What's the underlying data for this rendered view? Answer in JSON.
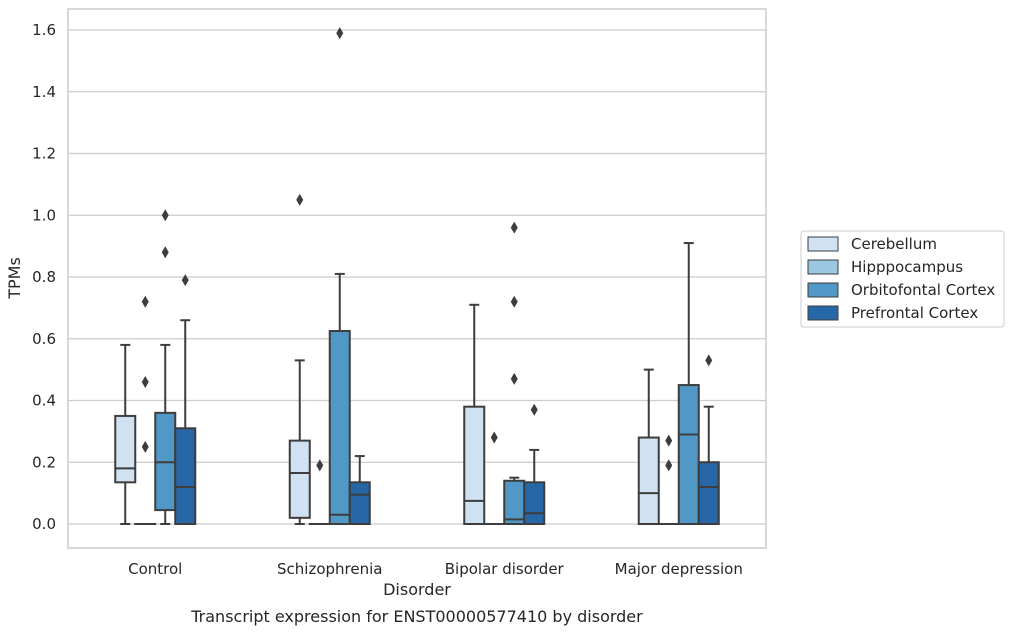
{
  "chart_data": {
    "type": "box",
    "caption": "Transcript expression for ENST00000577410 by disorder",
    "xlabel": "Disorder",
    "ylabel": "TPMs",
    "ylim": [
      -0.08,
      1.67
    ],
    "yticks": [
      "0.0",
      "0.2",
      "0.4",
      "0.6",
      "0.8",
      "1.0",
      "1.2",
      "1.4",
      "1.6"
    ],
    "grid": true,
    "legend_position": "right",
    "categories": [
      "Control",
      "Schizophrenia",
      "Bipolar disorder",
      "Major depression"
    ],
    "series": [
      {
        "name": "Cerebellum",
        "color": "#d0e1f2",
        "boxes": [
          {
            "low": 0.0,
            "q1": 0.135,
            "median": 0.18,
            "q3": 0.35,
            "high": 0.58,
            "outliers": []
          },
          {
            "low": 0.0,
            "q1": 0.02,
            "median": 0.165,
            "q3": 0.27,
            "high": 0.53,
            "outliers": [
              1.05
            ]
          },
          {
            "low": 0.0,
            "q1": 0.0,
            "median": 0.075,
            "q3": 0.38,
            "high": 0.71,
            "outliers": []
          },
          {
            "low": 0.0,
            "q1": 0.0,
            "median": 0.1,
            "q3": 0.28,
            "high": 0.5,
            "outliers": []
          }
        ]
      },
      {
        "name": "Hipppocampus",
        "color": "#9ac8e0",
        "boxes": [
          {
            "low": 0.0,
            "q1": 0.0,
            "median": 0.0,
            "q3": 0.0,
            "high": 0.0,
            "outliers": [
              0.25,
              0.46,
              0.72
            ]
          },
          {
            "low": 0.0,
            "q1": 0.0,
            "median": 0.0,
            "q3": 0.0,
            "high": 0.0,
            "outliers": [
              0.19
            ]
          },
          {
            "low": 0.0,
            "q1": 0.0,
            "median": 0.0,
            "q3": 0.0,
            "high": 0.0,
            "outliers": [
              0.28
            ]
          },
          {
            "low": 0.0,
            "q1": 0.0,
            "median": 0.0,
            "q3": 0.0,
            "high": 0.0,
            "outliers": [
              0.19,
              0.27
            ]
          }
        ]
      },
      {
        "name": "Orbitofontal Cortex",
        "color": "#5198c6",
        "boxes": [
          {
            "low": 0.0,
            "q1": 0.045,
            "median": 0.2,
            "q3": 0.36,
            "high": 0.58,
            "outliers": [
              0.88,
              1.0
            ]
          },
          {
            "low": 0.0,
            "q1": 0.0,
            "median": 0.03,
            "q3": 0.625,
            "high": 0.81,
            "outliers": [
              1.59
            ]
          },
          {
            "low": 0.0,
            "q1": 0.0,
            "median": 0.015,
            "q3": 0.14,
            "high": 0.15,
            "outliers": [
              0.47,
              0.72,
              0.96
            ]
          },
          {
            "low": 0.0,
            "q1": 0.0,
            "median": 0.29,
            "q3": 0.45,
            "high": 0.91,
            "outliers": []
          }
        ]
      },
      {
        "name": "Prefrontal Cortex",
        "color": "#2767a8",
        "boxes": [
          {
            "low": 0.0,
            "q1": 0.0,
            "median": 0.12,
            "q3": 0.31,
            "high": 0.66,
            "outliers": [
              0.79
            ]
          },
          {
            "low": 0.0,
            "q1": 0.0,
            "median": 0.095,
            "q3": 0.135,
            "high": 0.22,
            "outliers": []
          },
          {
            "low": 0.0,
            "q1": 0.0,
            "median": 0.035,
            "q3": 0.135,
            "high": 0.24,
            "outliers": [
              0.37
            ]
          },
          {
            "low": 0.0,
            "q1": 0.0,
            "median": 0.12,
            "q3": 0.2,
            "high": 0.38,
            "outliers": [
              0.53
            ]
          }
        ]
      }
    ]
  }
}
